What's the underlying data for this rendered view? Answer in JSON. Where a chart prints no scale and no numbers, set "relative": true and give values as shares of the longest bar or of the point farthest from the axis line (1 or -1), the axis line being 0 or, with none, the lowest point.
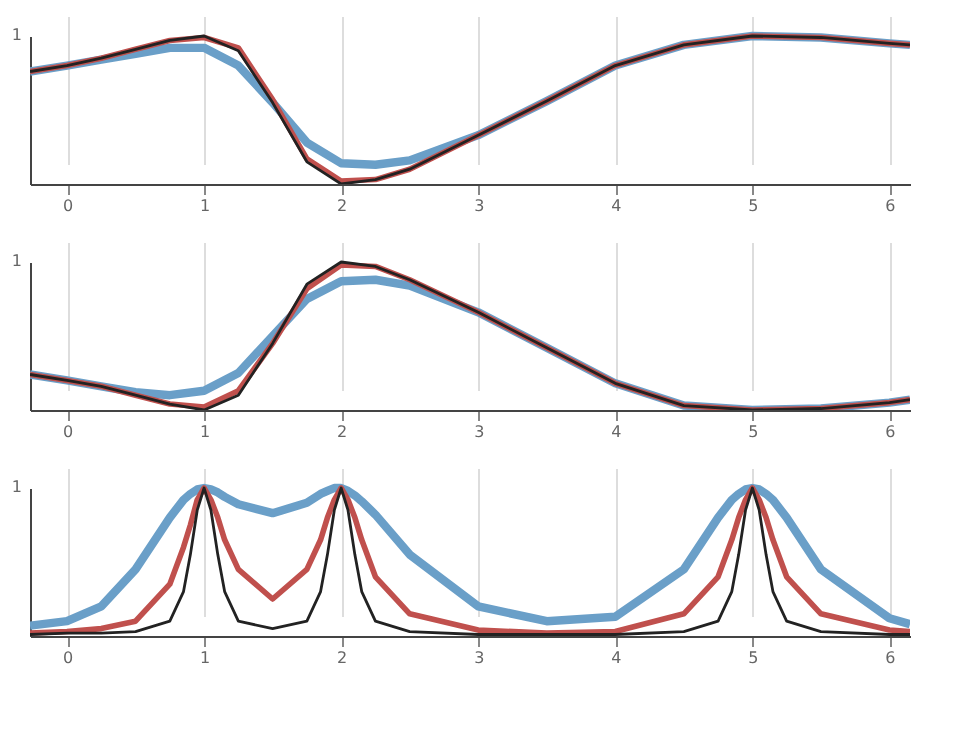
{
  "chart_data": [
    {
      "type": "line",
      "x": [
        -0.27,
        0,
        0.25,
        0.5,
        0.75,
        1,
        1.25,
        1.5,
        1.75,
        2,
        2.25,
        2.5,
        3,
        3.5,
        4,
        4.5,
        5,
        5.5,
        6,
        6.15
      ],
      "xlim": [
        -0.27,
        6.15
      ],
      "xticks": [
        0,
        1,
        2,
        3,
        4,
        5,
        6
      ],
      "relative": true,
      "annotations": [
        "1"
      ],
      "grid": "x",
      "marker": "none",
      "line_style": "solid",
      "series": [
        {
          "color": "#6a9fc8",
          "values": [
            0.76,
            0.8,
            0.84,
            0.88,
            0.92,
            0.92,
            0.8,
            0.55,
            0.28,
            0.14,
            0.13,
            0.16,
            0.33,
            0.56,
            0.8,
            0.94,
            1.0,
            0.99,
            0.95,
            0.94
          ]
        },
        {
          "color": "#c0504d",
          "values": [
            0.76,
            0.8,
            0.85,
            0.91,
            0.97,
            0.99,
            0.92,
            0.57,
            0.17,
            0.02,
            0.03,
            0.1,
            0.33,
            0.56,
            0.8,
            0.94,
            1.0,
            0.99,
            0.95,
            0.94
          ]
        },
        {
          "color": "#222222",
          "values": [
            0.76,
            0.8,
            0.85,
            0.91,
            0.97,
            1.0,
            0.9,
            0.55,
            0.15,
            0.0,
            0.03,
            0.1,
            0.33,
            0.56,
            0.8,
            0.94,
            1.0,
            0.99,
            0.95,
            0.94
          ]
        }
      ]
    },
    {
      "type": "line",
      "x": [
        -0.27,
        0,
        0.25,
        0.5,
        0.75,
        1,
        1.25,
        1.5,
        1.75,
        2,
        2.25,
        2.5,
        3,
        3.5,
        4,
        4.5,
        5,
        5.5,
        6,
        6.15
      ],
      "xlim": [
        -0.27,
        6.15
      ],
      "xticks": [
        0,
        1,
        2,
        3,
        4,
        5,
        6
      ],
      "relative": true,
      "annotations": [
        "1"
      ],
      "grid": "x",
      "marker": "none",
      "line_style": "solid",
      "series": [
        {
          "color": "#6a9fc8",
          "values": [
            0.24,
            0.2,
            0.16,
            0.12,
            0.1,
            0.13,
            0.25,
            0.5,
            0.75,
            0.87,
            0.88,
            0.84,
            0.66,
            0.42,
            0.18,
            0.03,
            0.0,
            0.01,
            0.05,
            0.07
          ]
        },
        {
          "color": "#c0504d",
          "values": [
            0.24,
            0.2,
            0.16,
            0.1,
            0.04,
            0.02,
            0.13,
            0.45,
            0.82,
            0.98,
            0.97,
            0.88,
            0.66,
            0.42,
            0.18,
            0.03,
            0.0,
            0.01,
            0.05,
            0.07
          ]
        },
        {
          "color": "#222222",
          "values": [
            0.24,
            0.2,
            0.16,
            0.1,
            0.04,
            0.0,
            0.1,
            0.45,
            0.85,
            1.0,
            0.97,
            0.88,
            0.66,
            0.42,
            0.18,
            0.03,
            0.0,
            0.01,
            0.05,
            0.07
          ]
        }
      ]
    },
    {
      "type": "line",
      "x": [
        -0.27,
        0,
        0.25,
        0.5,
        0.75,
        0.85,
        0.9,
        0.95,
        1,
        1.05,
        1.1,
        1.15,
        1.25,
        1.5,
        1.75,
        1.85,
        1.9,
        1.95,
        2,
        2.05,
        2.1,
        2.15,
        2.25,
        2.5,
        3,
        3.5,
        4,
        4.5,
        4.75,
        4.85,
        4.9,
        4.95,
        5,
        5.05,
        5.1,
        5.15,
        5.25,
        5.5,
        6,
        6.15
      ],
      "xlim": [
        -0.27,
        6.15
      ],
      "xticks": [
        0,
        1,
        2,
        3,
        4,
        5,
        6
      ],
      "relative": true,
      "annotations": [
        "1"
      ],
      "grid": "x",
      "marker": "none",
      "line_style": "solid",
      "series": [
        {
          "color": "#6a9fc8",
          "values": [
            0.07,
            0.1,
            0.2,
            0.45,
            0.8,
            0.92,
            0.96,
            0.99,
            1,
            0.99,
            0.97,
            0.94,
            0.89,
            0.83,
            0.9,
            0.96,
            0.98,
            1,
            1,
            0.98,
            0.95,
            0.91,
            0.82,
            0.55,
            0.2,
            0.1,
            0.13,
            0.45,
            0.8,
            0.92,
            0.96,
            0.99,
            1,
            0.99,
            0.96,
            0.92,
            0.8,
            0.45,
            0.12,
            0.08
          ]
        },
        {
          "color": "#c0504d",
          "values": [
            0.02,
            0.03,
            0.05,
            0.1,
            0.35,
            0.6,
            0.75,
            0.92,
            1,
            0.92,
            0.8,
            0.65,
            0.45,
            0.25,
            0.45,
            0.65,
            0.8,
            0.92,
            1,
            0.92,
            0.8,
            0.65,
            0.4,
            0.15,
            0.04,
            0.02,
            0.03,
            0.15,
            0.4,
            0.65,
            0.8,
            0.92,
            1,
            0.92,
            0.8,
            0.65,
            0.4,
            0.15,
            0.04,
            0.03
          ]
        },
        {
          "color": "#222222",
          "values": [
            0.01,
            0.02,
            0.02,
            0.03,
            0.1,
            0.3,
            0.55,
            0.85,
            1,
            0.85,
            0.55,
            0.3,
            0.1,
            0.05,
            0.1,
            0.3,
            0.55,
            0.85,
            1,
            0.85,
            0.55,
            0.3,
            0.1,
            0.03,
            0.01,
            0.01,
            0.01,
            0.03,
            0.1,
            0.3,
            0.55,
            0.85,
            1,
            0.85,
            0.55,
            0.3,
            0.1,
            0.03,
            0.01,
            0.01
          ]
        }
      ]
    }
  ]
}
